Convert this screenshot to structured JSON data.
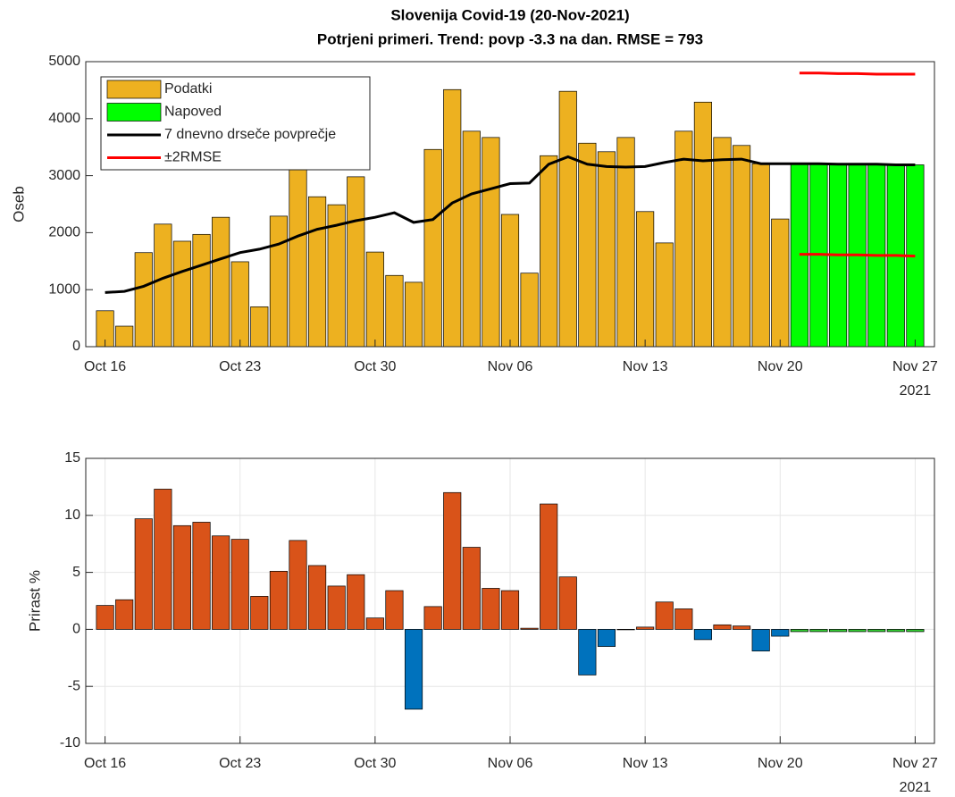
{
  "chart_data": [
    {
      "type": "bar",
      "title": "Slovenija Covid-19 (20-Nov-2021)",
      "subtitle": "Potrjeni primeri. Trend: povp -3.3 na dan. RMSE = 793",
      "ylabel": "Oseb",
      "x": [
        "2021-10-16",
        "2021-10-17",
        "2021-10-18",
        "2021-10-19",
        "2021-10-20",
        "2021-10-21",
        "2021-10-22",
        "2021-10-23",
        "2021-10-24",
        "2021-10-25",
        "2021-10-26",
        "2021-10-27",
        "2021-10-28",
        "2021-10-29",
        "2021-10-30",
        "2021-10-31",
        "2021-11-01",
        "2021-11-02",
        "2021-11-03",
        "2021-11-04",
        "2021-11-05",
        "2021-11-06",
        "2021-11-07",
        "2021-11-08",
        "2021-11-09",
        "2021-11-10",
        "2021-11-11",
        "2021-11-12",
        "2021-11-13",
        "2021-11-14",
        "2021-11-15",
        "2021-11-16",
        "2021-11-17",
        "2021-11-18",
        "2021-11-19",
        "2021-11-20",
        "2021-11-21",
        "2021-11-22",
        "2021-11-23",
        "2021-11-24",
        "2021-11-25",
        "2021-11-26",
        "2021-11-27"
      ],
      "series": [
        {
          "name": "Podatki",
          "type": "bar",
          "color": "#edb120",
          "values": [
            630,
            360,
            1650,
            2150,
            1850,
            1970,
            2270,
            1490,
            700,
            2290,
            3130,
            2630,
            2490,
            2980,
            1660,
            1250,
            1130,
            3460,
            4510,
            3780,
            3670,
            2320,
            1290,
            3350,
            4480,
            3570,
            3420,
            3670,
            2370,
            1820,
            3780,
            4290,
            3670,
            3530,
            3210,
            2240,
            null,
            null,
            null,
            null,
            null,
            null,
            null
          ]
        },
        {
          "name": "Napoved",
          "type": "bar",
          "color": "#00ff00",
          "values": [
            null,
            null,
            null,
            null,
            null,
            null,
            null,
            null,
            null,
            null,
            null,
            null,
            null,
            null,
            null,
            null,
            null,
            null,
            null,
            null,
            null,
            null,
            null,
            null,
            null,
            null,
            null,
            null,
            null,
            null,
            null,
            null,
            null,
            null,
            null,
            null,
            3210,
            3210,
            3200,
            3200,
            3200,
            3190,
            3190
          ]
        },
        {
          "name": "7 dnevno drseče povprečje",
          "type": "line",
          "color": "#000000",
          "values": [
            950,
            970,
            1060,
            1200,
            1320,
            1430,
            1540,
            1650,
            1710,
            1800,
            1940,
            2060,
            2130,
            2210,
            2270,
            2350,
            2180,
            2230,
            2520,
            2680,
            2770,
            2860,
            2870,
            3200,
            3330,
            3200,
            3160,
            3150,
            3160,
            3230,
            3290,
            3260,
            3280,
            3290,
            3210,
            3210,
            3210,
            3210,
            3200,
            3200,
            3200,
            3190,
            3190
          ]
        },
        {
          "name": "±2RMSE",
          "type": "line",
          "color": "#ff0000",
          "values": [
            null,
            null,
            null,
            null,
            null,
            null,
            null,
            null,
            null,
            null,
            null,
            null,
            null,
            null,
            null,
            null,
            null,
            null,
            null,
            null,
            null,
            null,
            null,
            null,
            null,
            null,
            null,
            null,
            null,
            null,
            null,
            null,
            null,
            null,
            null,
            null,
            4800,
            4800,
            4790,
            4790,
            4780,
            4780,
            4780
          ],
          "lower": [
            null,
            null,
            null,
            null,
            null,
            null,
            null,
            null,
            null,
            null,
            null,
            null,
            null,
            null,
            null,
            null,
            null,
            null,
            null,
            null,
            null,
            null,
            null,
            null,
            null,
            null,
            null,
            null,
            null,
            null,
            null,
            null,
            null,
            null,
            null,
            null,
            1620,
            1620,
            1610,
            1610,
            1600,
            1600,
            1590
          ]
        }
      ],
      "xlim": [
        "2021-10-15",
        "2021-11-28"
      ],
      "xticks": [
        {
          "value": "2021-10-16",
          "label": "Oct 16"
        },
        {
          "value": "2021-10-23",
          "label": "Oct 23"
        },
        {
          "value": "2021-10-30",
          "label": "Oct 30"
        },
        {
          "value": "2021-11-06",
          "label": "Nov 06"
        },
        {
          "value": "2021-11-13",
          "label": "Nov 13"
        },
        {
          "value": "2021-11-20",
          "label": "Nov 20"
        },
        {
          "value": "2021-11-27",
          "label": "Nov 27"
        }
      ],
      "x_annotation": "2021",
      "ylim": [
        0,
        5000
      ],
      "yticks": [
        0,
        1000,
        2000,
        3000,
        4000,
        5000
      ],
      "grid": false,
      "legend": "northwest"
    },
    {
      "type": "bar",
      "ylabel": "Prirast %",
      "x": [
        "2021-10-16",
        "2021-10-17",
        "2021-10-18",
        "2021-10-19",
        "2021-10-20",
        "2021-10-21",
        "2021-10-22",
        "2021-10-23",
        "2021-10-24",
        "2021-10-25",
        "2021-10-26",
        "2021-10-27",
        "2021-10-28",
        "2021-10-29",
        "2021-10-30",
        "2021-10-31",
        "2021-11-01",
        "2021-11-02",
        "2021-11-03",
        "2021-11-04",
        "2021-11-05",
        "2021-11-06",
        "2021-11-07",
        "2021-11-08",
        "2021-11-09",
        "2021-11-10",
        "2021-11-11",
        "2021-11-12",
        "2021-11-13",
        "2021-11-14",
        "2021-11-15",
        "2021-11-16",
        "2021-11-17",
        "2021-11-18",
        "2021-11-19",
        "2021-11-20",
        "2021-11-21",
        "2021-11-22",
        "2021-11-23",
        "2021-11-24",
        "2021-11-25",
        "2021-11-26",
        "2021-11-27"
      ],
      "series": [
        {
          "type": "bar",
          "color": "#d95319",
          "negative_color": "#0072bd",
          "values": [
            2.1,
            2.6,
            9.7,
            12.3,
            9.1,
            9.4,
            8.2,
            7.9,
            2.9,
            5.1,
            7.8,
            5.6,
            3.8,
            4.8,
            1.0,
            3.4,
            -7.0,
            2.0,
            12.0,
            7.2,
            3.6,
            3.4,
            0.1,
            11.0,
            4.6,
            -4.0,
            -1.5,
            0,
            0.2,
            2.4,
            1.8,
            -0.9,
            0.4,
            0.3,
            -1.9,
            -0.6,
            null,
            null,
            null,
            null,
            null,
            null,
            null
          ]
        },
        {
          "type": "bar",
          "color": "#33cc33",
          "negative_color": "#33cc33",
          "values": [
            null,
            null,
            null,
            null,
            null,
            null,
            null,
            null,
            null,
            null,
            null,
            null,
            null,
            null,
            null,
            null,
            null,
            null,
            null,
            null,
            null,
            null,
            null,
            null,
            null,
            null,
            null,
            null,
            null,
            null,
            null,
            null,
            null,
            null,
            null,
            null,
            -0.2,
            -0.2,
            -0.2,
            -0.2,
            -0.2,
            -0.2,
            -0.2
          ]
        }
      ],
      "xlim": [
        "2021-10-15",
        "2021-11-28"
      ],
      "xticks": [
        {
          "value": "2021-10-16",
          "label": "Oct 16"
        },
        {
          "value": "2021-10-23",
          "label": "Oct 23"
        },
        {
          "value": "2021-10-30",
          "label": "Oct 30"
        },
        {
          "value": "2021-11-06",
          "label": "Nov 06"
        },
        {
          "value": "2021-11-13",
          "label": "Nov 13"
        },
        {
          "value": "2021-11-20",
          "label": "Nov 20"
        },
        {
          "value": "2021-11-27",
          "label": "Nov 27"
        }
      ],
      "x_annotation": "2021",
      "ylim": [
        -10,
        15
      ],
      "yticks": [
        -10,
        -5,
        0,
        5,
        10,
        15
      ],
      "grid": true
    }
  ]
}
